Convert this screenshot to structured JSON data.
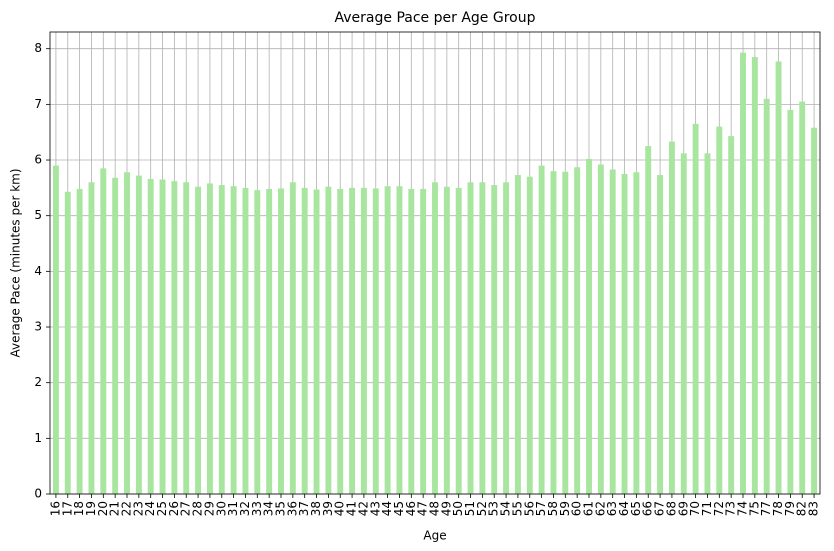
{
  "chart_data": {
    "type": "bar",
    "title": "Average Pace per Age Group",
    "xlabel": "Age",
    "ylabel": "Average Pace (minutes per km)",
    "categories": [
      "16",
      "17",
      "18",
      "19",
      "20",
      "21",
      "22",
      "23",
      "24",
      "25",
      "26",
      "27",
      "28",
      "29",
      "30",
      "31",
      "32",
      "33",
      "34",
      "35",
      "36",
      "37",
      "38",
      "39",
      "40",
      "41",
      "42",
      "43",
      "44",
      "45",
      "46",
      "47",
      "48",
      "49",
      "50",
      "51",
      "52",
      "53",
      "54",
      "55",
      "56",
      "57",
      "58",
      "59",
      "60",
      "61",
      "62",
      "63",
      "64",
      "65",
      "66",
      "67",
      "68",
      "69",
      "70",
      "71",
      "72",
      "73",
      "74",
      "75",
      "77",
      "78",
      "79",
      "82",
      "83"
    ],
    "values": [
      5.9,
      5.43,
      5.48,
      5.6,
      5.85,
      5.68,
      5.78,
      5.72,
      5.66,
      5.65,
      5.62,
      5.6,
      5.52,
      5.58,
      5.55,
      5.53,
      5.5,
      5.46,
      5.48,
      5.49,
      5.6,
      5.5,
      5.47,
      5.52,
      5.48,
      5.5,
      5.5,
      5.49,
      5.53,
      5.53,
      5.48,
      5.48,
      5.6,
      5.52,
      5.5,
      5.6,
      5.6,
      5.55,
      5.6,
      5.73,
      5.7,
      5.9,
      5.8,
      5.79,
      5.87,
      6.02,
      5.92,
      5.83,
      5.75,
      5.78,
      6.25,
      5.73,
      6.33,
      6.12,
      6.65,
      6.12,
      6.6,
      6.43,
      7.93,
      7.85,
      7.1,
      7.77,
      6.9,
      7.05,
      6.58
    ],
    "color": "#a8e6a0",
    "ylim": [
      0,
      8.3
    ],
    "yticks": [
      0,
      1,
      2,
      3,
      4,
      5,
      6,
      7,
      8
    ],
    "grid": true
  }
}
